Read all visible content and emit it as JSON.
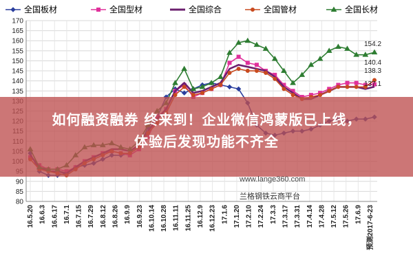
{
  "banner": {
    "line1": "如何融资融券 终来到！企业微信鸿蒙版已上线，",
    "line2": "体验后发现功能不齐全"
  },
  "watermark": {
    "site": "www.lange360.com",
    "brand": "兰格钢铁云商平台"
  },
  "chart_data": {
    "type": "line",
    "title": "",
    "xlabel": "",
    "ylabel": "",
    "ylim": [
      80,
      170
    ],
    "yticks": [
      80,
      85,
      90,
      95,
      100,
      105,
      110,
      115,
      120,
      125,
      130,
      135,
      140,
      145,
      150,
      155,
      160,
      165,
      170
    ],
    "grid": true,
    "legend_position": "top",
    "x_tick_labels": [
      "16.5.20",
      "16.6.3",
      "16.6.17",
      "16.7.1",
      "16.7.15",
      "16.7.29",
      "16.8.12",
      "16.8.26",
      "16.9.9",
      "16.9.23",
      "16.10.14",
      "16.10.28",
      "16.11.11",
      "16.11.25",
      "16.12.9",
      "16.12.23",
      "17.1.6",
      "17.1.20",
      "17.2.10",
      "17.2.24",
      "17.3.3",
      "17.3.17",
      "17.3.31",
      "17.4.14",
      "17.4.28",
      "17.5.12",
      "17.5.26",
      "17.6.9",
      "预测2017-6-23"
    ],
    "series": [
      {
        "name": "全国板材",
        "color": "#2b3f9e",
        "marker": "diamond",
        "values": [
          104,
          95,
          93,
          93,
          94,
          97,
          98,
          99,
          101,
          103,
          103,
          104,
          107,
          117,
          122,
          132,
          136,
          134,
          136,
          138,
          139,
          138,
          137,
          136,
          129,
          118,
          114,
          113,
          114,
          115,
          115,
          116,
          118,
          120,
          121,
          120,
          121,
          121,
          122
        ]
      },
      {
        "name": "全国型材",
        "color": "#e0309b",
        "marker": "square",
        "values": [
          102,
          98,
          96,
          96,
          95,
          97,
          100,
          102,
          104,
          105,
          104,
          103,
          106,
          112,
          122,
          126,
          135,
          138,
          132,
          134,
          136,
          138,
          149,
          152,
          149,
          148,
          145,
          143,
          138,
          135,
          132,
          133,
          134,
          136,
          138,
          139,
          139,
          138,
          138.3
        ]
      },
      {
        "name": "全国综合",
        "color": "#6b1f6e",
        "marker": "none",
        "values": [
          103,
          97,
          95,
          95,
          94,
          97,
          100,
          102,
          104,
          106,
          106,
          105,
          108,
          115,
          121,
          126,
          135,
          139,
          134,
          135,
          137,
          139,
          146,
          148,
          147,
          146,
          145,
          142,
          137,
          134,
          131,
          131,
          133,
          135,
          137,
          137,
          137,
          136,
          137.1
        ]
      },
      {
        "name": "全国管材",
        "color": "#c84a1f",
        "marker": "circle",
        "values": [
          101,
          96,
          95,
          94,
          93,
          96,
          99,
          101,
          103,
          105,
          104,
          104,
          107,
          114,
          119,
          124,
          133,
          137,
          133,
          134,
          136,
          138,
          144,
          146,
          145,
          145,
          144,
          141,
          136,
          133,
          131,
          132,
          133,
          135,
          137,
          137,
          137,
          137,
          140.4
        ]
      },
      {
        "name": "全国长材",
        "color": "#2e7d32",
        "marker": "triangle",
        "values": [
          106,
          97,
          96,
          96,
          98,
          103,
          107,
          108,
          108,
          109,
          107,
          106,
          110,
          118,
          125,
          129,
          139,
          146,
          136,
          137,
          139,
          142,
          154,
          159,
          160,
          158,
          156,
          151,
          145,
          139,
          143,
          148,
          151,
          155,
          157,
          156,
          153,
          153,
          154.2
        ]
      }
    ],
    "end_labels": [
      "154.2",
      "140.4",
      "138.3",
      "137.1"
    ]
  }
}
